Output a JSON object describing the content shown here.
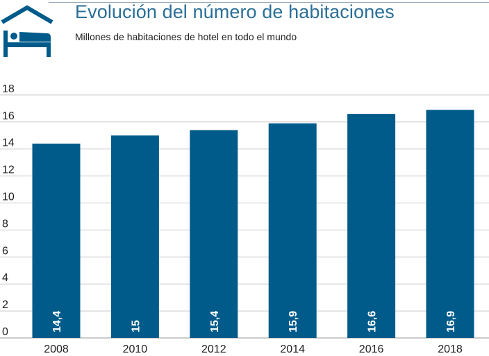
{
  "header": {
    "title": "Evolución del número de habitaciones",
    "subtitle": "Millones de habitaciones de hotel en todo el mundo",
    "icon": "hotel-bed-icon"
  },
  "colors": {
    "bar": "#005b8a",
    "title": "#2a6f97",
    "icon": "#005b8a",
    "grid": "#c8c8c8"
  },
  "chart_data": {
    "type": "bar",
    "title": "Evolución del número de habitaciones",
    "subtitle": "Millones de habitaciones de hotel en todo el mundo",
    "categories": [
      "2008",
      "2010",
      "2012",
      "2014",
      "2016",
      "2018"
    ],
    "values": [
      14.4,
      15,
      15.4,
      15.9,
      16.6,
      16.9
    ],
    "value_labels": [
      "14,4",
      "15",
      "15,4",
      "15,9",
      "16,6",
      "16,9"
    ],
    "y_ticks": [
      0,
      2,
      4,
      6,
      8,
      10,
      12,
      14,
      16,
      18
    ],
    "ylim": [
      0,
      18
    ],
    "grid": true,
    "xlabel": "",
    "ylabel": ""
  }
}
